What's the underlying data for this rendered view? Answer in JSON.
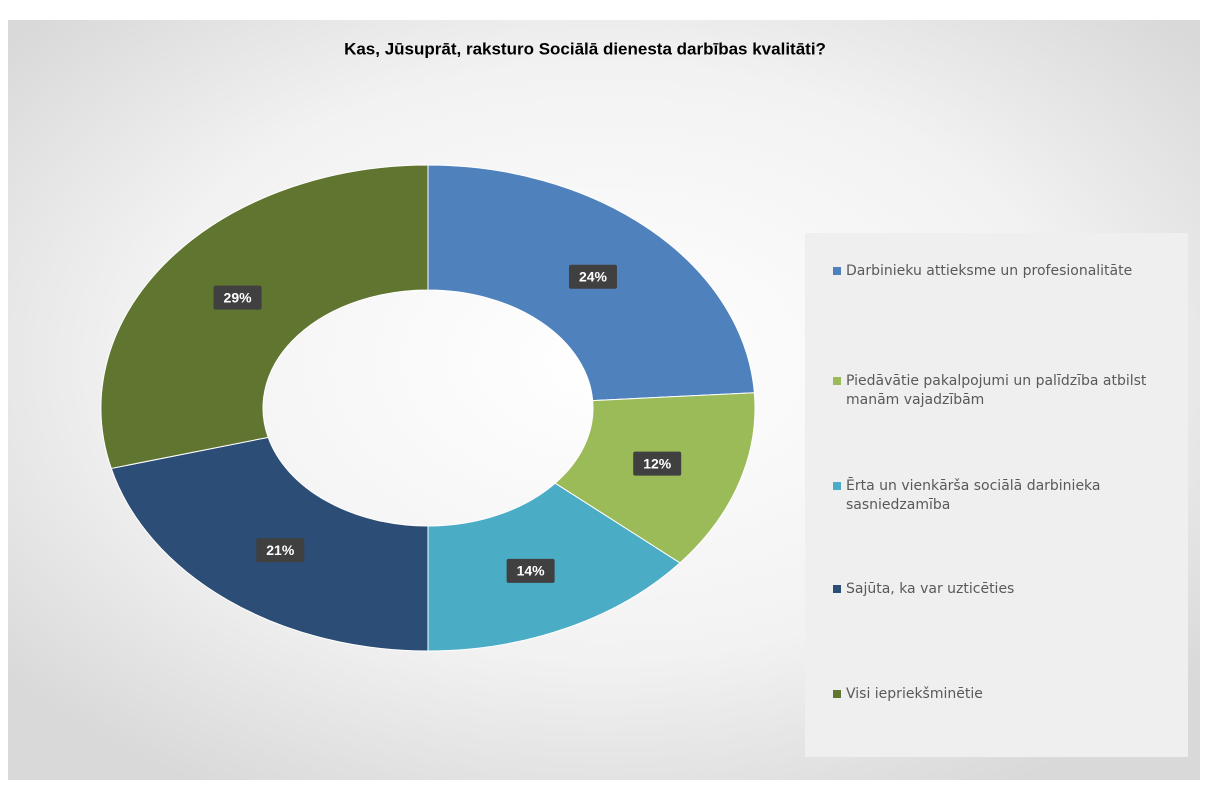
{
  "chart_data": {
    "type": "donut",
    "title": "Kas, Jūsuprāt, raksturo Sociālā dienesta darbības kvalitāti?",
    "categories": [
      "Darbinieku attieksme un profesionalitāte",
      "Piedāvātie pakalpojumi un palīdzība atbilst manām vajadzībām",
      "Ērta un vienkārša sociālā darbinieka sasniedzamība",
      "Sajūta, ka var uzticēties",
      "Visi iepriekšminētie"
    ],
    "values": [
      24,
      12,
      14,
      21,
      29
    ],
    "value_labels": [
      "24%",
      "12%",
      "14%",
      "21%",
      "29%"
    ],
    "colors": [
      "#4f81bd",
      "#9bbb59",
      "#4bacc6",
      "#2c4d75",
      "#5f7530"
    ],
    "legend": "right"
  }
}
